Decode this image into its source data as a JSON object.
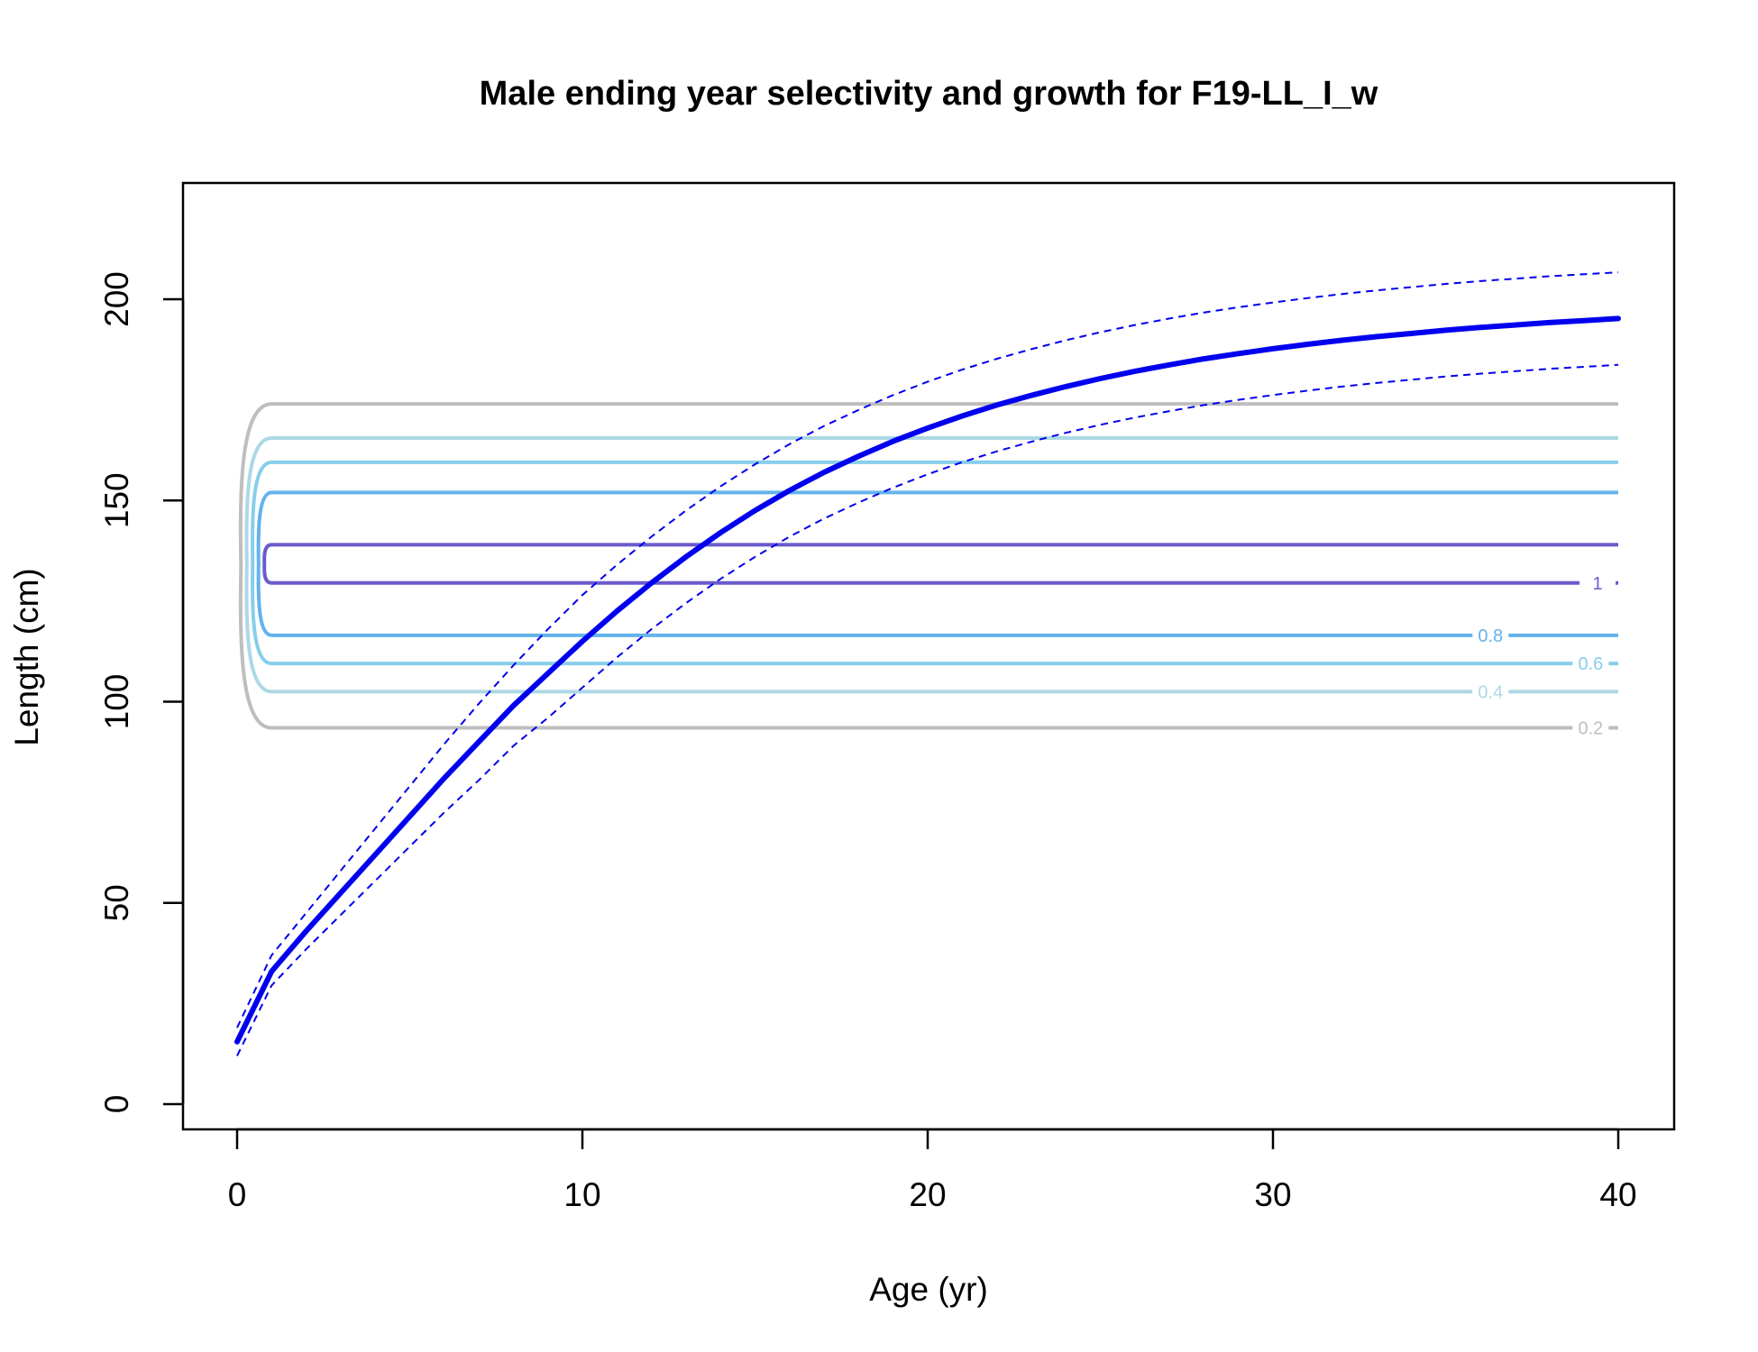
{
  "chart_data": {
    "type": "line",
    "title": "Male ending year selectivity and growth for F19-LL_I_w",
    "xlabel": "Age (yr)",
    "ylabel": "Length (cm)",
    "xlim": [
      0,
      40
    ],
    "ylim": [
      0,
      210
    ],
    "x_ticks": [
      0,
      10,
      20,
      30,
      40
    ],
    "y_ticks": [
      0,
      50,
      100,
      150,
      200
    ],
    "grid": false,
    "legend": "none",
    "growth": {
      "color": "#0000ee",
      "mean": [
        [
          0,
          15.5
        ],
        [
          1,
          33
        ],
        [
          2,
          43
        ],
        [
          3,
          52.5
        ],
        [
          4,
          62
        ],
        [
          5,
          71.5
        ],
        [
          6,
          81
        ],
        [
          7,
          90
        ],
        [
          8,
          99
        ],
        [
          9,
          107
        ],
        [
          10,
          115
        ],
        [
          11,
          122.5
        ],
        [
          12,
          129.5
        ],
        [
          13,
          136
        ],
        [
          14,
          142
        ],
        [
          15,
          147.5
        ],
        [
          16,
          152.5
        ],
        [
          17,
          157
        ],
        [
          18,
          161
        ],
        [
          19,
          164.7
        ],
        [
          20,
          168
        ],
        [
          21,
          171
        ],
        [
          22,
          173.7
        ],
        [
          23,
          176.1
        ],
        [
          24,
          178.3
        ],
        [
          25,
          180.3
        ],
        [
          26,
          182.1
        ],
        [
          27,
          183.7
        ],
        [
          28,
          185.2
        ],
        [
          29,
          186.5
        ],
        [
          30,
          187.7
        ],
        [
          31,
          188.8
        ],
        [
          32,
          189.8
        ],
        [
          33,
          190.7
        ],
        [
          34,
          191.5
        ],
        [
          35,
          192.3
        ],
        [
          36,
          193
        ],
        [
          37,
          193.6
        ],
        [
          38,
          194.2
        ],
        [
          39,
          194.7
        ],
        [
          40,
          195.2
        ]
      ],
      "upper": [
        [
          0,
          19
        ],
        [
          1,
          37
        ],
        [
          2,
          47.5
        ],
        [
          3,
          58
        ],
        [
          4,
          68.5
        ],
        [
          5,
          79
        ],
        [
          6,
          89.5
        ],
        [
          7,
          99.5
        ],
        [
          8,
          109
        ],
        [
          9,
          118
        ],
        [
          10,
          126.5
        ],
        [
          11,
          134
        ],
        [
          12,
          141
        ],
        [
          13,
          147.5
        ],
        [
          14,
          153.5
        ],
        [
          15,
          159
        ],
        [
          16,
          164
        ],
        [
          17,
          168.5
        ],
        [
          18,
          172.5
        ],
        [
          19,
          176.2
        ],
        [
          20,
          179.5
        ],
        [
          21,
          182.5
        ],
        [
          22,
          185.2
        ],
        [
          23,
          187.6
        ],
        [
          24,
          189.8
        ],
        [
          25,
          191.8
        ],
        [
          26,
          193.6
        ],
        [
          27,
          195.2
        ],
        [
          28,
          196.7
        ],
        [
          29,
          198
        ],
        [
          30,
          199.2
        ],
        [
          31,
          200.3
        ],
        [
          32,
          201.3
        ],
        [
          33,
          202.2
        ],
        [
          34,
          203
        ],
        [
          35,
          203.8
        ],
        [
          36,
          204.5
        ],
        [
          37,
          205.1
        ],
        [
          38,
          205.7
        ],
        [
          39,
          206.2
        ],
        [
          40,
          206.7
        ]
      ],
      "lower": [
        [
          0,
          12
        ],
        [
          1,
          29.5
        ],
        [
          2,
          38.5
        ],
        [
          3,
          47
        ],
        [
          4,
          55.5
        ],
        [
          5,
          64
        ],
        [
          6,
          72.5
        ],
        [
          7,
          80.5
        ],
        [
          8,
          89
        ],
        [
          9,
          96
        ],
        [
          10,
          103.5
        ],
        [
          11,
          111
        ],
        [
          12,
          118
        ],
        [
          13,
          124.5
        ],
        [
          14,
          130.5
        ],
        [
          15,
          136
        ],
        [
          16,
          141
        ],
        [
          17,
          145.5
        ],
        [
          18,
          149.5
        ],
        [
          19,
          153.2
        ],
        [
          20,
          156.5
        ],
        [
          21,
          159.5
        ],
        [
          22,
          162.2
        ],
        [
          23,
          164.6
        ],
        [
          24,
          166.8
        ],
        [
          25,
          168.8
        ],
        [
          26,
          170.6
        ],
        [
          27,
          172.2
        ],
        [
          28,
          173.7
        ],
        [
          29,
          175
        ],
        [
          30,
          176.2
        ],
        [
          31,
          177.3
        ],
        [
          32,
          178.3
        ],
        [
          33,
          179.2
        ],
        [
          34,
          180
        ],
        [
          35,
          180.8
        ],
        [
          36,
          181.5
        ],
        [
          37,
          182.1
        ],
        [
          38,
          182.7
        ],
        [
          39,
          183.2
        ],
        [
          40,
          183.7
        ]
      ]
    },
    "selectivity_contours": [
      {
        "level": "0.2",
        "color": "#bebebe",
        "upper": 174,
        "lower": 93.5,
        "label_x": 39.2
      },
      {
        "level": "0.4",
        "color": "#add8e6",
        "upper": 165.5,
        "lower": 102.5,
        "label_x": 36.3
      },
      {
        "level": "0.6",
        "color": "#87ceeb",
        "upper": 159.5,
        "lower": 109.5,
        "label_x": 39.2
      },
      {
        "level": "0.8",
        "color": "#63b3ed",
        "upper": 152,
        "lower": 116.5,
        "label_x": 36.3
      },
      {
        "level": "1",
        "color": "#6a5acd",
        "upper": 139,
        "lower": 129.5,
        "label_x": 39.4
      }
    ]
  }
}
